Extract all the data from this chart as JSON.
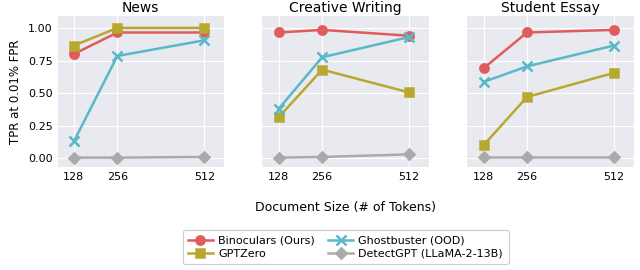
{
  "x": [
    128,
    256,
    512
  ],
  "titles": [
    "News",
    "Creative Writing",
    "Student Essay"
  ],
  "series": {
    "Binoculars (Ours)": {
      "color": "#e05c5c",
      "marker": "o",
      "markersize": 6,
      "linewidth": 1.8,
      "data": [
        [
          0.8,
          0.965,
          0.965
        ],
        [
          0.965,
          0.985,
          0.94
        ],
        [
          0.69,
          0.965,
          0.985
        ]
      ]
    },
    "Ghostbuster (OOD)": {
      "color": "#5ab8c8",
      "marker": "x",
      "markersize": 7,
      "linewidth": 1.8,
      "data": [
        [
          0.13,
          0.785,
          0.905
        ],
        [
          0.38,
          0.775,
          0.93
        ],
        [
          0.585,
          0.705,
          0.865
        ]
      ]
    },
    "GPTZero": {
      "color": "#b8a830",
      "marker": "s",
      "markersize": 6,
      "linewidth": 1.8,
      "data": [
        [
          0.865,
          1.0,
          1.0
        ],
        [
          0.315,
          0.68,
          0.505
        ],
        [
          0.1,
          0.47,
          0.655
        ]
      ]
    },
    "DetectGPT (LLaMA-2-13B)": {
      "color": "#aaaaaa",
      "marker": "D",
      "markersize": 5,
      "linewidth": 1.8,
      "data": [
        [
          0.005,
          0.005,
          0.01
        ],
        [
          0.005,
          0.01,
          0.03
        ],
        [
          0.01,
          0.01,
          0.01
        ]
      ]
    }
  },
  "ylabel": "TPR at 0.01% FPR",
  "xlabel": "Document Size (# of Tokens)",
  "yticks": [
    0.0,
    0.25,
    0.5,
    0.75,
    1.0
  ],
  "xticks": [
    128,
    256,
    512
  ],
  "ylim": [
    -0.07,
    1.09
  ],
  "xlim": [
    80,
    570
  ],
  "bg_color": "#e8eaf0",
  "fig_bg": "#ffffff",
  "legend_order_row1": [
    "Binoculars (Ours)",
    "GPTZero"
  ],
  "legend_order_row2": [
    "Ghostbuster (OOD)",
    "DetectGPT (LLaMA-2-13B)"
  ]
}
